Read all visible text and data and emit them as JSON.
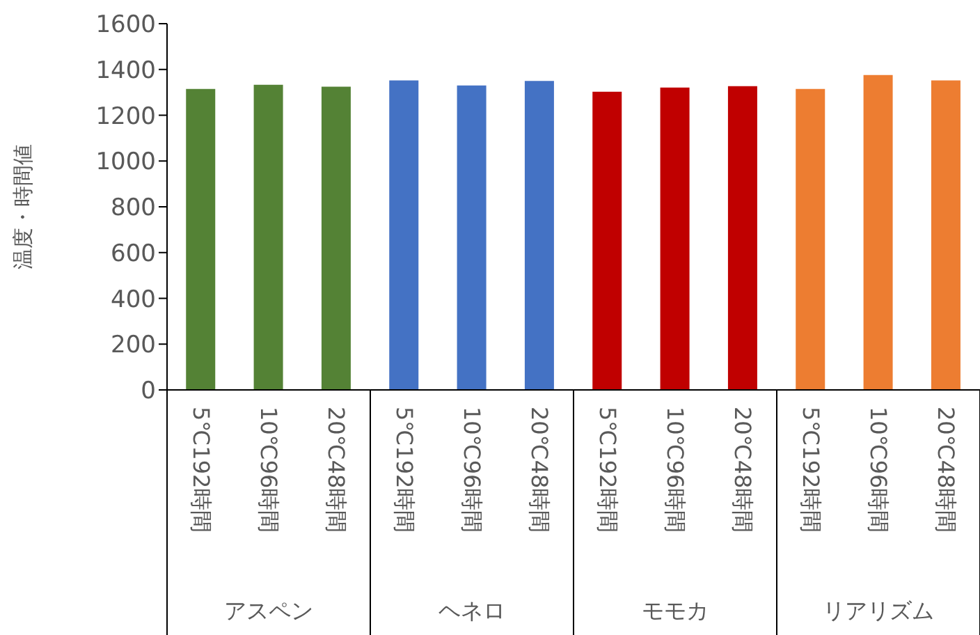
{
  "chart_data": {
    "type": "bar",
    "ylabel": "温度・時間値",
    "categories": [
      "5℃192時間",
      "10℃96時間",
      "20℃48時間",
      "5℃192時間",
      "10℃96時間",
      "20℃48時間",
      "5℃192時間",
      "10℃96時間",
      "20℃48時間",
      "5℃192時間",
      "10℃96時間",
      "20℃48時間"
    ],
    "values": [
      1315,
      1333,
      1325,
      1352,
      1330,
      1350,
      1303,
      1321,
      1327,
      1315,
      1376,
      1352
    ],
    "colors": [
      "#548235",
      "#548235",
      "#548235",
      "#4472c4",
      "#4472c4",
      "#4472c4",
      "#c00000",
      "#c00000",
      "#c00000",
      "#ed7d31",
      "#ed7d31",
      "#ed7d31"
    ],
    "annotations": [
      "アスペン",
      "ヘネロ",
      "モモカ",
      "リアリズム"
    ],
    "ylim": [
      0,
      1600
    ],
    "yticks": [
      0,
      200,
      400,
      600,
      800,
      1000,
      1200,
      1400,
      1600
    ],
    "grid": false,
    "legend": false
  }
}
